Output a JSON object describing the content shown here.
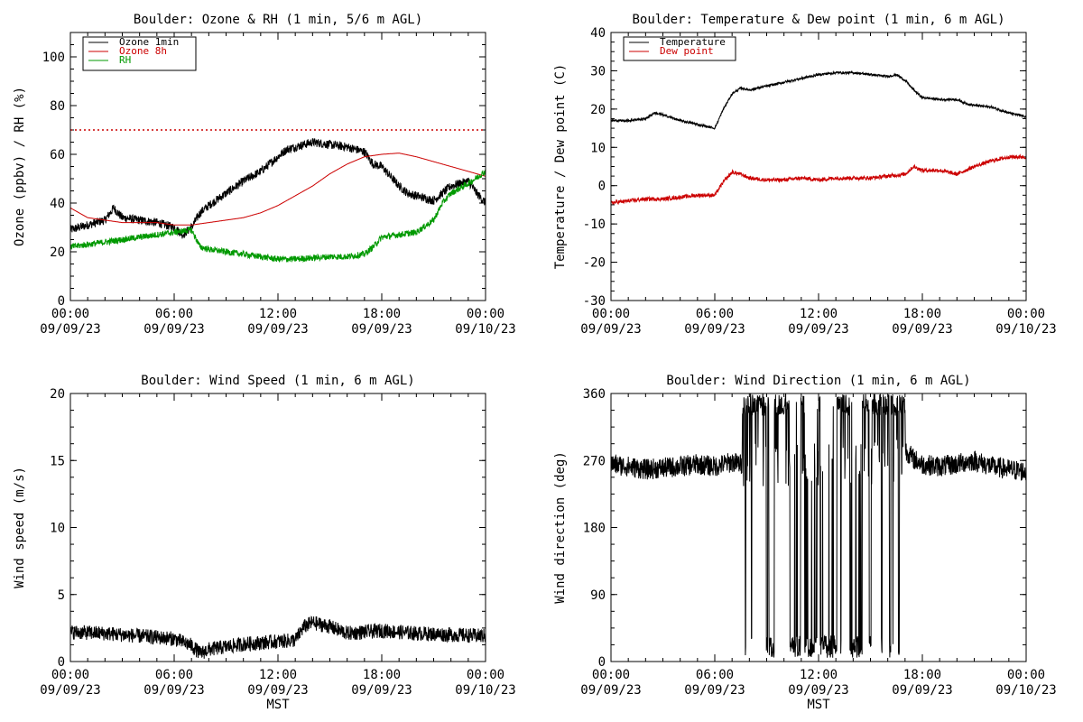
{
  "chart_data": [
    {
      "type": "line",
      "title": "Boulder: Ozone & RH (1 min, 5/6 m AGL)",
      "ylabel": "Ozone (ppbv) / RH (%)",
      "xlabel": "",
      "xlim": [
        0,
        24
      ],
      "ylim": [
        0,
        110
      ],
      "yticks": [
        0,
        20,
        40,
        60,
        80,
        100
      ],
      "x_tick_labels": [
        {
          "time": "00:00",
          "date": "09/09/23"
        },
        {
          "time": "06:00",
          "date": "09/09/23"
        },
        {
          "time": "12:00",
          "date": "09/09/23"
        },
        {
          "time": "18:00",
          "date": "09/09/23"
        },
        {
          "time": "00:00",
          "date": "09/10/23"
        }
      ],
      "reference_lines": [
        {
          "y": 70,
          "color": "#cc0000",
          "style": "dotted"
        }
      ],
      "legend": {
        "position": "top-left"
      },
      "series": [
        {
          "name": "Ozone 1min",
          "color": "#000000",
          "noise": 1.8,
          "x": [
            0,
            1,
            2,
            2.5,
            3,
            4,
            5,
            6,
            6.5,
            7,
            7.5,
            8,
            9,
            10,
            11,
            12,
            12.5,
            13,
            14,
            15,
            16,
            17,
            17.5,
            18,
            19,
            19.5,
            20,
            21,
            22,
            23,
            23.5,
            24
          ],
          "y": [
            29,
            31,
            33,
            38,
            34,
            33,
            32,
            30,
            27,
            30,
            36,
            39,
            44,
            49,
            53,
            59,
            62,
            63,
            65,
            64,
            63,
            61,
            56,
            55,
            47,
            44,
            43,
            41,
            47,
            49,
            44,
            40
          ]
        },
        {
          "name": "Ozone 8h",
          "color": "#cc0000",
          "noise": 0,
          "x": [
            0,
            1,
            2,
            3,
            4,
            5,
            6,
            7,
            8,
            9,
            10,
            11,
            12,
            13,
            14,
            15,
            16,
            17,
            18,
            19,
            20,
            21,
            22,
            23,
            24
          ],
          "y": [
            38,
            34,
            33,
            32,
            32,
            32,
            31,
            31,
            32,
            33,
            34,
            36,
            39,
            43,
            47,
            52,
            56,
            59,
            60,
            60.5,
            59,
            57,
            55,
            53,
            51
          ]
        },
        {
          "name": "RH",
          "color": "#009900",
          "noise": 1.3,
          "x": [
            0,
            1,
            2,
            3,
            4,
            5,
            6,
            7,
            7.5,
            8,
            9,
            10,
            11,
            12,
            13,
            14,
            15,
            16,
            17,
            17.5,
            18,
            19,
            20,
            21,
            21.5,
            22,
            23,
            24
          ],
          "y": [
            22,
            23,
            24,
            25,
            26,
            27,
            28,
            29,
            22,
            21,
            20,
            19,
            18,
            17,
            17,
            17.5,
            18,
            18,
            19,
            22,
            26,
            27,
            28,
            33,
            40,
            44,
            48,
            53
          ]
        }
      ]
    },
    {
      "type": "line",
      "title": "Boulder: Temperature & Dew point (1 min, 6 m AGL)",
      "ylabel": "Temperature / Dew point (C)",
      "xlabel": "",
      "xlim": [
        0,
        24
      ],
      "ylim": [
        -30,
        40
      ],
      "yticks": [
        -30,
        -20,
        -10,
        0,
        10,
        20,
        30,
        40
      ],
      "x_tick_labels": [
        {
          "time": "00:00",
          "date": "09/09/23"
        },
        {
          "time": "06:00",
          "date": "09/09/23"
        },
        {
          "time": "12:00",
          "date": "09/09/23"
        },
        {
          "time": "18:00",
          "date": "09/09/23"
        },
        {
          "time": "00:00",
          "date": "09/10/23"
        }
      ],
      "legend": {
        "position": "top-left"
      },
      "series": [
        {
          "name": "Temperature",
          "color": "#000000",
          "noise": 0.3,
          "x": [
            0,
            1,
            2,
            2.5,
            3,
            4,
            5,
            5.5,
            6,
            6.5,
            7,
            7.5,
            8,
            9,
            10,
            11,
            12,
            13,
            14,
            15,
            16,
            16.5,
            17,
            17.5,
            18,
            19,
            20,
            20.5,
            21,
            22,
            23,
            24
          ],
          "y": [
            17,
            17,
            17.5,
            19,
            18.5,
            17,
            16,
            15.5,
            15,
            20,
            24,
            25.5,
            25,
            26,
            27,
            28,
            29,
            29.5,
            29.5,
            29,
            28.5,
            29,
            27.5,
            25,
            23,
            22.5,
            22.5,
            21.5,
            21,
            20.5,
            19,
            18
          ]
        },
        {
          "name": "Dew point",
          "color": "#cc0000",
          "noise": 0.5,
          "x": [
            0,
            1,
            2,
            3,
            4,
            5,
            6,
            6.5,
            7,
            7.5,
            8,
            9,
            10,
            11,
            12,
            13,
            14,
            15,
            16,
            17,
            17.5,
            18,
            19,
            20,
            21,
            22,
            23,
            24
          ],
          "y": [
            -4.5,
            -4,
            -3.5,
            -3.5,
            -3,
            -2.5,
            -2.5,
            1,
            3.5,
            3,
            2,
            1.5,
            1.5,
            2,
            1.5,
            2,
            2,
            2,
            2.5,
            3,
            5,
            4,
            4,
            3,
            5,
            6.5,
            7.5,
            7.5
          ]
        }
      ]
    },
    {
      "type": "line",
      "title": "Boulder: Wind Speed (1 min, 6 m AGL)",
      "ylabel": "Wind speed (m/s)",
      "xlabel": "MST",
      "xlim": [
        0,
        24
      ],
      "ylim": [
        0,
        20
      ],
      "yticks": [
        0,
        5,
        10,
        15,
        20
      ],
      "x_tick_labels": [
        {
          "time": "00:00",
          "date": "09/09/23"
        },
        {
          "time": "06:00",
          "date": "09/09/23"
        },
        {
          "time": "12:00",
          "date": "09/09/23"
        },
        {
          "time": "18:00",
          "date": "09/09/23"
        },
        {
          "time": "00:00",
          "date": "09/10/23"
        }
      ],
      "series": [
        {
          "name": "",
          "color": "#000000",
          "noise": 0.55,
          "x": [
            0,
            2,
            4,
            6,
            7,
            7.5,
            8,
            9,
            10,
            11,
            12,
            13,
            13.5,
            14,
            15,
            16,
            17,
            18,
            20,
            22,
            24
          ],
          "y": [
            2.2,
            2.1,
            1.9,
            1.7,
            1.2,
            0.6,
            0.9,
            1.1,
            1.3,
            1.4,
            1.5,
            1.6,
            2.6,
            2.9,
            2.6,
            2.1,
            2.2,
            2.3,
            2.1,
            2.0,
            1.9
          ]
        }
      ]
    },
    {
      "type": "line",
      "title": "Boulder: Wind Direction (1 min, 6 m AGL)",
      "ylabel": "Wind direction (deg)",
      "xlabel": "MST",
      "xlim": [
        0,
        24
      ],
      "ylim": [
        0,
        360
      ],
      "yticks": [
        0,
        90,
        180,
        270,
        360
      ],
      "x_tick_labels": [
        {
          "time": "00:00",
          "date": "09/09/23"
        },
        {
          "time": "06:00",
          "date": "09/09/23"
        },
        {
          "time": "12:00",
          "date": "09/09/23"
        },
        {
          "time": "18:00",
          "date": "09/09/23"
        },
        {
          "time": "00:00",
          "date": "09/10/23"
        }
      ],
      "series": [
        {
          "name": "",
          "color": "#000000",
          "noise": 14,
          "x": [
            0,
            1,
            2,
            3,
            4,
            5,
            6,
            7,
            7.5,
            8,
            9,
            10,
            11,
            12,
            13,
            14,
            15,
            16,
            16.9,
            17,
            17.5,
            18,
            19,
            20,
            20.5,
            21,
            22,
            23,
            24
          ],
          "y": [
            265,
            262,
            258,
            260,
            262,
            265,
            262,
            268,
            265,
            262,
            265,
            263,
            262,
            265,
            260,
            262,
            266,
            265,
            275,
            285,
            272,
            265,
            262,
            265,
            268,
            270,
            262,
            258,
            255
          ],
          "wrap_from": 7.6,
          "wrap_to": 17.0
        }
      ]
    }
  ]
}
